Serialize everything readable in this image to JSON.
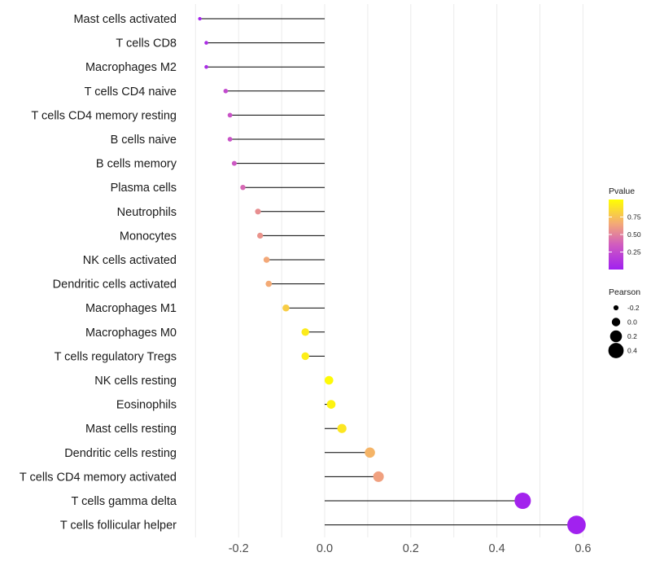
{
  "chart_data": {
    "type": "lollipop",
    "categories": [
      "Mast cells activated",
      "T cells CD8",
      "Macrophages M2",
      "T cells CD4 naive",
      "T cells CD4 memory resting",
      "B cells naive",
      "B cells memory",
      "Plasma cells",
      "Neutrophils",
      "Monocytes",
      "NK cells activated",
      "Dendritic cells activated",
      "Macrophages M1",
      "Macrophages M0",
      "T cells regulatory  Tregs",
      "NK cells resting",
      "Eosinophils",
      "Mast cells resting",
      "Dendritic cells resting",
      "T cells CD4 memory activated",
      "T cells gamma delta",
      "T cells follicular helper"
    ],
    "pearson": [
      -0.29,
      -0.275,
      -0.275,
      -0.23,
      -0.22,
      -0.22,
      -0.21,
      -0.19,
      -0.155,
      -0.15,
      -0.135,
      -0.13,
      -0.09,
      -0.045,
      -0.045,
      0.01,
      0.015,
      0.04,
      0.105,
      0.125,
      0.46,
      0.585
    ],
    "pvalue": [
      0.02,
      0.08,
      0.07,
      0.25,
      0.3,
      0.3,
      0.33,
      0.4,
      0.55,
      0.57,
      0.65,
      0.66,
      0.8,
      0.92,
      0.93,
      0.98,
      0.95,
      0.9,
      0.7,
      0.62,
      0.02,
      0.01
    ],
    "x_ticks": [
      -0.2,
      0.0,
      0.2,
      0.4,
      0.6
    ],
    "x_tick_labels": [
      "-0.2",
      "0.0",
      "0.2",
      "0.4",
      "0.6"
    ],
    "xlim": [
      -0.3,
      0.6
    ],
    "xlabel": "",
    "ylabel": "",
    "color_scale": {
      "low": "#a020f0",
      "high": "#ffff00",
      "domain": [
        0.0,
        1.0
      ]
    },
    "legend_pvalue": {
      "title": "Pvalue",
      "breaks": [
        0.75,
        0.5,
        0.25
      ],
      "labels": [
        "0.75",
        "0.50",
        "0.25"
      ]
    },
    "legend_pearson": {
      "title": "Pearson",
      "breaks": [
        -0.2,
        0.0,
        0.2,
        0.4
      ],
      "labels": [
        "-0.2",
        "0.0",
        "0.2",
        "0.4"
      ]
    }
  }
}
